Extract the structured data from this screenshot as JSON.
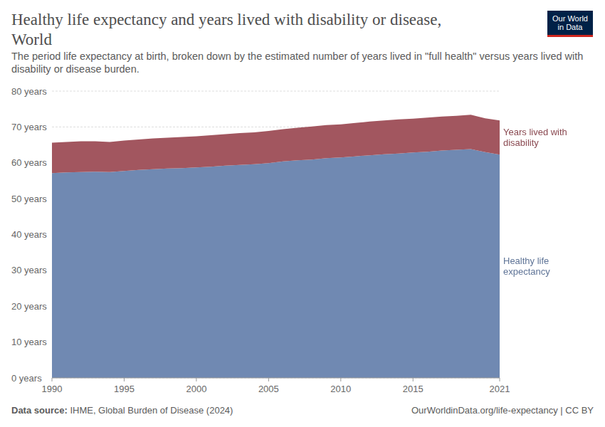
{
  "chart_data": {
    "type": "area",
    "title": "Healthy life expectancy and years lived with disability or disease, World",
    "subtitle": "The period life expectancy at birth, broken down by the estimated number of years lived in \"full health\" versus years lived with disability or disease burden.",
    "source_label": "Data source:",
    "source": "IHME, Global Burden of Disease (2024)",
    "url": "OurWorldinData.org/life-expectancy | CC BY",
    "logo": "Our World in Data",
    "stacked": true,
    "grid": true,
    "x": [
      1990,
      1991,
      1992,
      1993,
      1994,
      1995,
      1996,
      1997,
      1998,
      1999,
      2000,
      2001,
      2002,
      2003,
      2004,
      2005,
      2006,
      2007,
      2008,
      2009,
      2010,
      2011,
      2012,
      2013,
      2014,
      2015,
      2016,
      2017,
      2018,
      2019,
      2020,
      2021
    ],
    "xlim": [
      1990,
      2021
    ],
    "xticks": [
      1990,
      1995,
      2000,
      2005,
      2010,
      2015,
      2021
    ],
    "ylim": [
      0,
      80
    ],
    "yticks": [
      {
        "value": 0,
        "label": "0 years"
      },
      {
        "value": 10,
        "label": "10 years"
      },
      {
        "value": 20,
        "label": "20 years"
      },
      {
        "value": 30,
        "label": "30 years"
      },
      {
        "value": 40,
        "label": "40 years"
      },
      {
        "value": 50,
        "label": "50 years"
      },
      {
        "value": 60,
        "label": "60 years"
      },
      {
        "value": 70,
        "label": "70 years"
      },
      {
        "value": 80,
        "label": "80 years"
      }
    ],
    "series": [
      {
        "name": "Healthy life expectancy",
        "color": "#7089b2",
        "values": [
          57.1,
          57.3,
          57.4,
          57.5,
          57.4,
          57.7,
          58.0,
          58.2,
          58.4,
          58.5,
          58.7,
          58.9,
          59.2,
          59.4,
          59.6,
          59.9,
          60.4,
          60.7,
          60.9,
          61.3,
          61.5,
          61.8,
          62.1,
          62.4,
          62.6,
          62.9,
          63.1,
          63.4,
          63.6,
          63.8,
          63.0,
          62.3
        ]
      },
      {
        "name": "Years lived with disability",
        "color": "#a2565f",
        "values": [
          8.5,
          8.5,
          8.6,
          8.5,
          8.4,
          8.5,
          8.5,
          8.6,
          8.6,
          8.7,
          8.7,
          8.8,
          8.8,
          8.9,
          8.9,
          9.0,
          9.0,
          9.1,
          9.2,
          9.2,
          9.2,
          9.3,
          9.4,
          9.4,
          9.5,
          9.4,
          9.5,
          9.5,
          9.5,
          9.6,
          9.4,
          9.5
        ]
      }
    ]
  }
}
